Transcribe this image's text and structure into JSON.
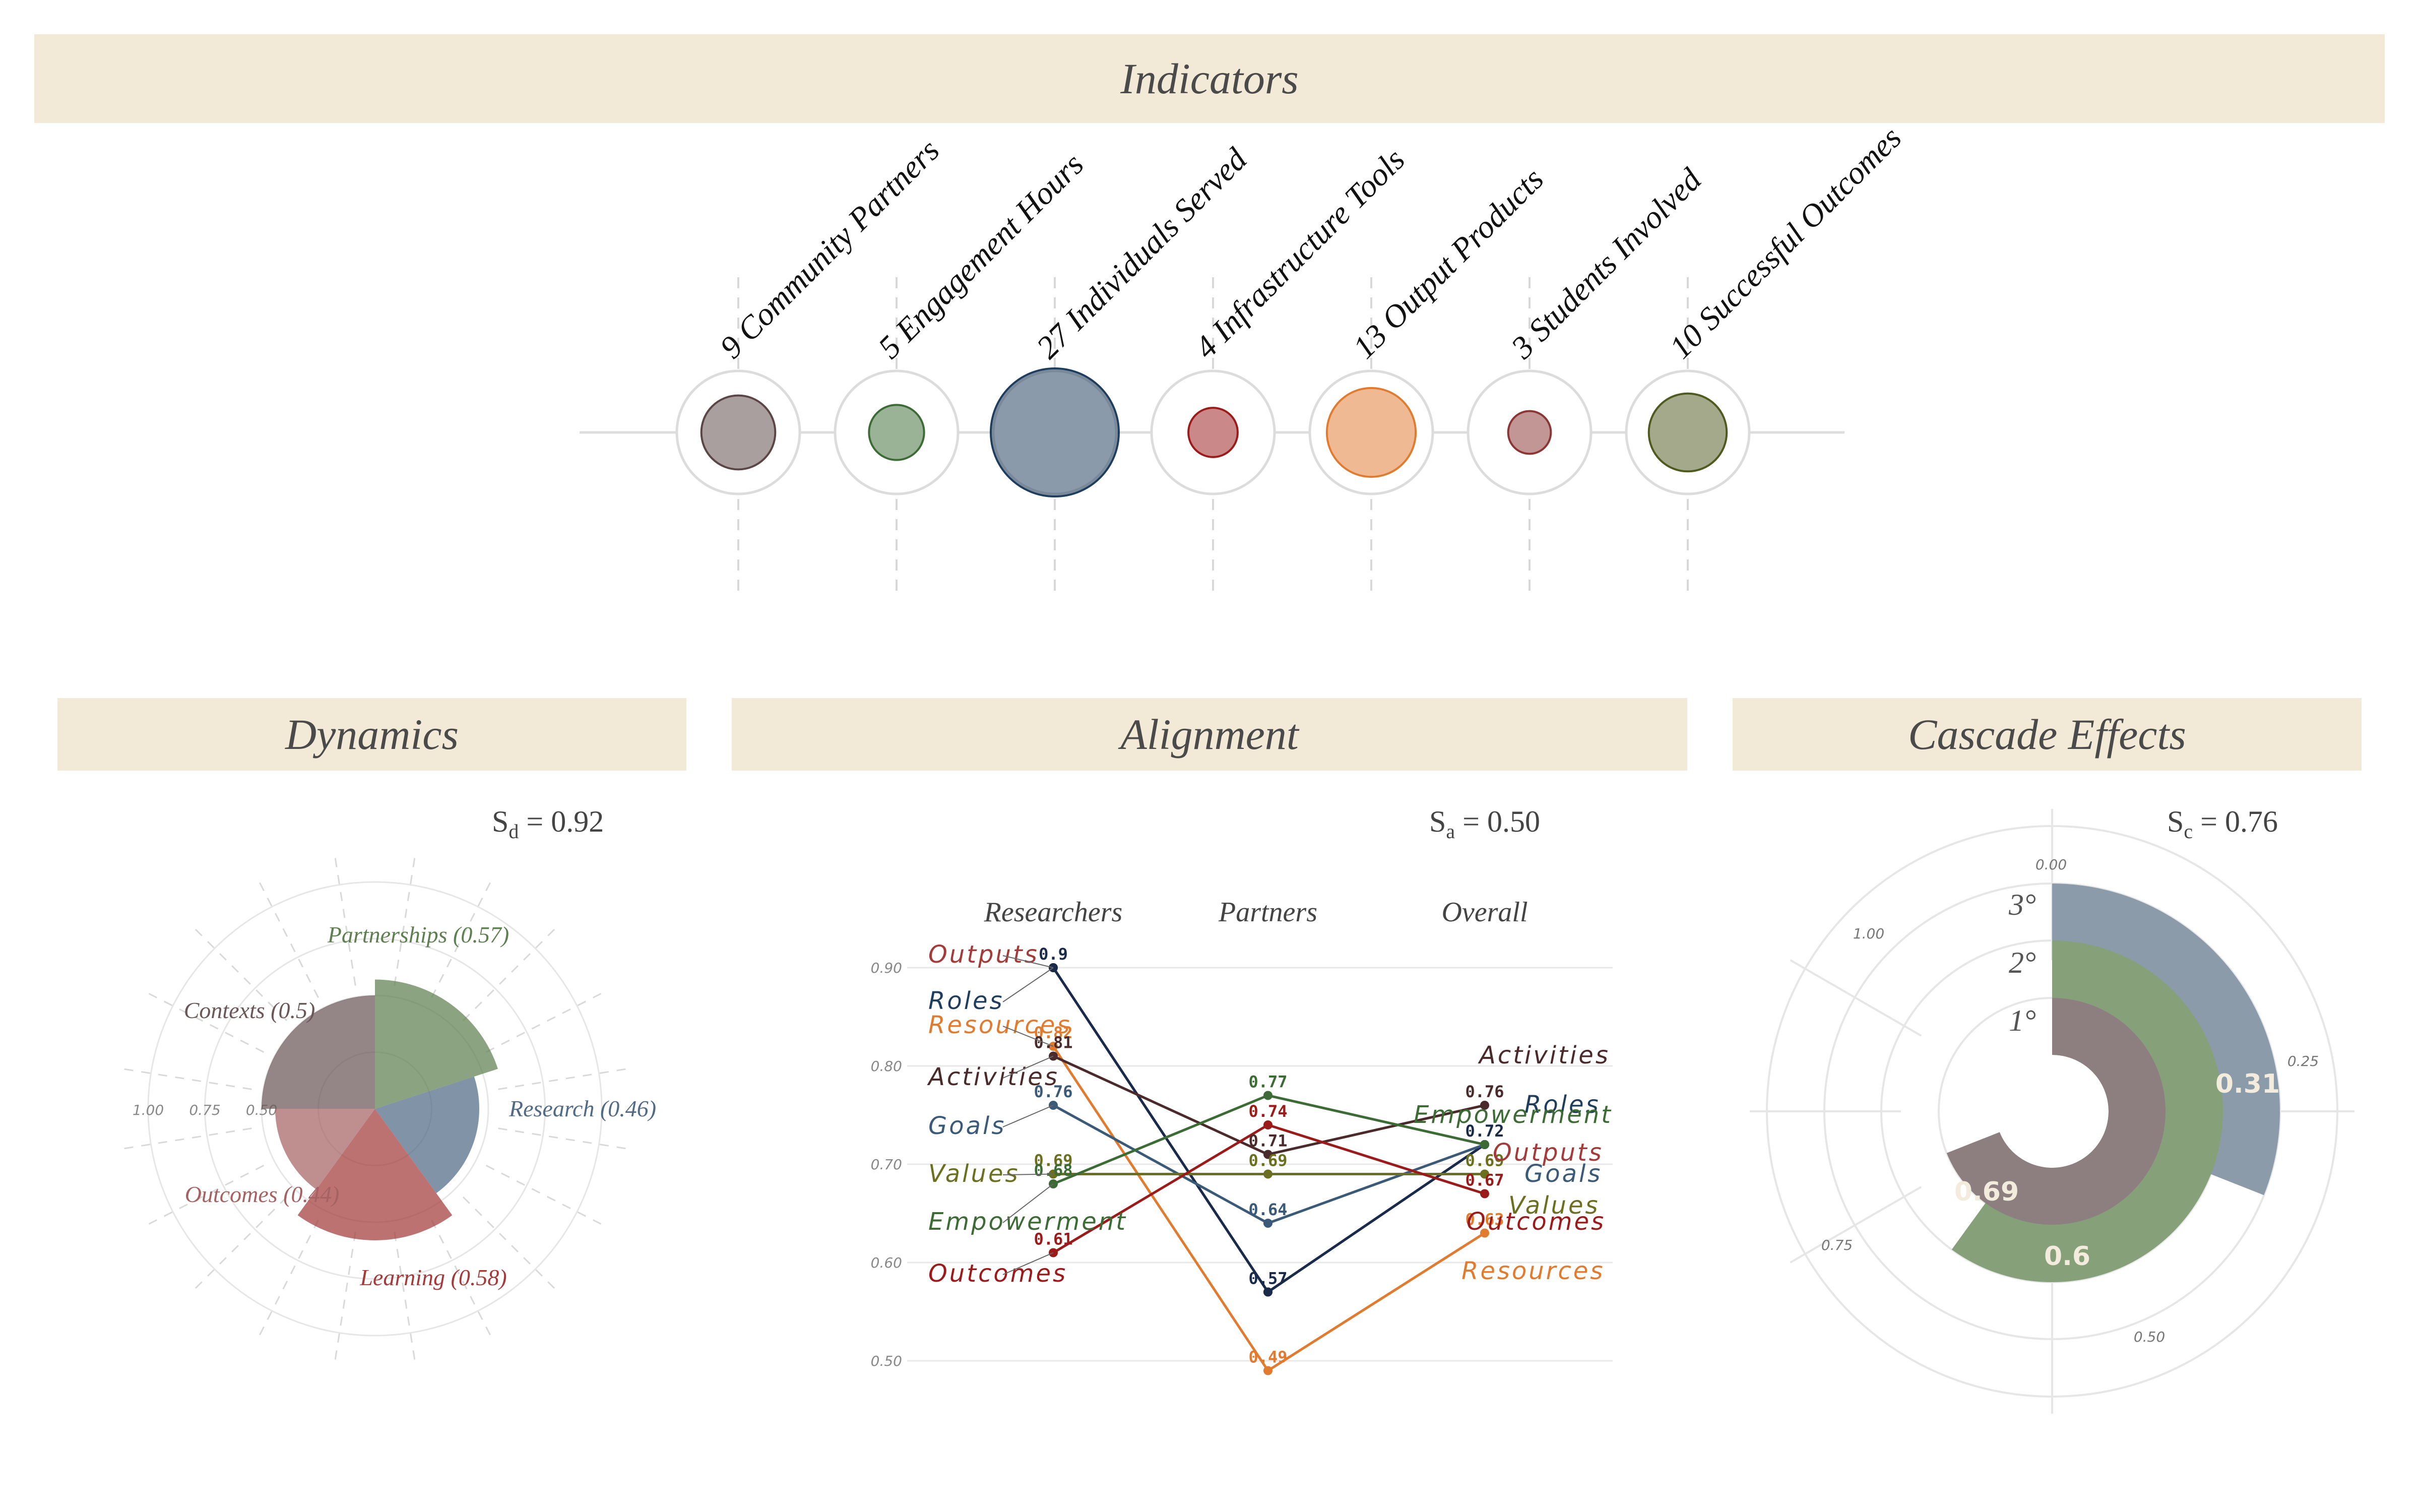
{
  "sections": {
    "indicators_title": "Indicators",
    "dynamics_title": "Dynamics",
    "alignment_title": "Alignment",
    "cascade_title": "Cascade Effects"
  },
  "scores": {
    "dynamics": {
      "symbol": "S",
      "sub": "d",
      "value": "= 0.92"
    },
    "alignment": {
      "symbol": "S",
      "sub": "a",
      "value": "= 0.50"
    },
    "cascade": {
      "symbol": "S",
      "sub": "c",
      "value": "= 0.76"
    }
  },
  "chart_data": [
    {
      "id": "indicators",
      "type": "bubble",
      "title": "Indicators",
      "items": [
        {
          "label": "9 Community Partners",
          "value": 9,
          "color": "#5b4645"
        },
        {
          "label": "5 Engagement Hours",
          "value": 5,
          "color": "#3d6b35"
        },
        {
          "label": "27 Individuals Served",
          "value": 27,
          "color": "#1f3e5e"
        },
        {
          "label": "4 Infrastructure Tools",
          "value": 4,
          "color": "#9b1b1b"
        },
        {
          "label": "13 Output Products",
          "value": 13,
          "color": "#e07b30"
        },
        {
          "label": "3 Students Involved",
          "value": 3,
          "color": "#8c3535"
        },
        {
          "label": "10 Successful Outcomes",
          "value": 10,
          "color": "#4f5a1e"
        }
      ]
    },
    {
      "id": "dynamics",
      "type": "radial-bar",
      "title": "Dynamics",
      "rlim": [
        0,
        1
      ],
      "ticks": [
        "1.00",
        "0.75",
        "0.50"
      ],
      "items": [
        {
          "label": "Partnerships (0.57)",
          "value": 0.57,
          "color": "#5e7f4f"
        },
        {
          "label": "Research (0.46)",
          "value": 0.46,
          "color": "#516a85"
        },
        {
          "label": "Learning (0.58)",
          "value": 0.58,
          "color": "#a33b3b"
        },
        {
          "label": "Outcomes (0.44)",
          "value": 0.44,
          "color": "#a66262"
        },
        {
          "label": "Contexts (0.5)",
          "value": 0.5,
          "color": "#6b5757"
        }
      ]
    },
    {
      "id": "alignment",
      "type": "line",
      "title": "Alignment",
      "categories": [
        "Researchers",
        "Partners",
        "Overall"
      ],
      "ylim": [
        0.5,
        0.9
      ],
      "yticks": [
        "0.50",
        "0.60",
        "0.70",
        "0.80",
        "0.90"
      ],
      "series": [
        {
          "name": "Outputs",
          "values": [
            0.9,
            0.57,
            0.72
          ],
          "color": "#1a2a4a",
          "labelColor": "#a33b3b"
        },
        {
          "name": "Roles",
          "values": [
            0.9,
            0.57,
            0.72
          ],
          "color": "#1a2a4a",
          "labelColor": "#1f3e5e"
        },
        {
          "name": "Resources",
          "values": [
            0.82,
            0.49,
            0.63
          ],
          "color": "#e07b30",
          "labelColor": "#e07b30"
        },
        {
          "name": "Activities",
          "values": [
            0.81,
            0.71,
            0.76
          ],
          "color": "#4a2a2a",
          "labelColor": "#4a2a2a"
        },
        {
          "name": "Goals",
          "values": [
            0.76,
            0.64,
            0.72
          ],
          "color": "#3a5a78",
          "labelColor": "#3a5a78"
        },
        {
          "name": "Values",
          "values": [
            0.69,
            0.69,
            0.69
          ],
          "color": "#6b7020",
          "labelColor": "#6b7020"
        },
        {
          "name": "Empowerment",
          "values": [
            0.68,
            0.77,
            0.72
          ],
          "color": "#3d6b35",
          "labelColor": "#3d6b35"
        },
        {
          "name": "Outcomes",
          "values": [
            0.61,
            0.74,
            0.67
          ],
          "color": "#9b1b1b",
          "labelColor": "#9b1b1b"
        }
      ],
      "point_labels": [
        {
          "text": "0.9",
          "series": "Roles",
          "cat": 0
        },
        {
          "text": "0.82",
          "series": "Resources",
          "cat": 0
        },
        {
          "text": "0.81",
          "series": "Activities",
          "cat": 0
        },
        {
          "text": "0.76",
          "series": "Goals",
          "cat": 0
        },
        {
          "text": "0.69",
          "series": "Values",
          "cat": 0
        },
        {
          "text": "0.68",
          "series": "Empowerment",
          "cat": 0
        },
        {
          "text": "0.61",
          "series": "Outcomes",
          "cat": 0
        },
        {
          "text": "0.77",
          "series": "Empowerment",
          "cat": 1
        },
        {
          "text": "0.74",
          "series": "Outcomes",
          "cat": 1
        },
        {
          "text": "0.71",
          "series": "Activities",
          "cat": 1
        },
        {
          "text": "0.69",
          "series": "Values",
          "cat": 1
        },
        {
          "text": "0.64",
          "series": "Goals",
          "cat": 1
        },
        {
          "text": "0.57",
          "series": "Roles",
          "cat": 1
        },
        {
          "text": "0.49",
          "series": "Resources",
          "cat": 1
        },
        {
          "text": "0.76",
          "series": "Activities",
          "cat": 2
        },
        {
          "text": "0.72",
          "series": "Roles",
          "cat": 2
        },
        {
          "text": "0.69",
          "series": "Values",
          "cat": 2
        },
        {
          "text": "0.67",
          "series": "Outcomes",
          "cat": 2
        },
        {
          "text": "0.63",
          "series": "Resources",
          "cat": 2
        }
      ]
    },
    {
      "id": "cascade",
      "type": "radial-bar",
      "title": "Cascade Effects",
      "rlim": [
        0,
        1
      ],
      "ticks": [
        "0.00",
        "0.25",
        "0.50",
        "0.75",
        "1.00"
      ],
      "items": [
        {
          "label": "1°",
          "value": 0.69,
          "display": "0.69",
          "color": "#8d7f7f"
        },
        {
          "label": "2°",
          "value": 0.6,
          "display": "0.6",
          "color": "#86a07a"
        },
        {
          "label": "3°",
          "value": 0.31,
          "display": "0.31",
          "color": "#8b9baa"
        }
      ]
    }
  ]
}
